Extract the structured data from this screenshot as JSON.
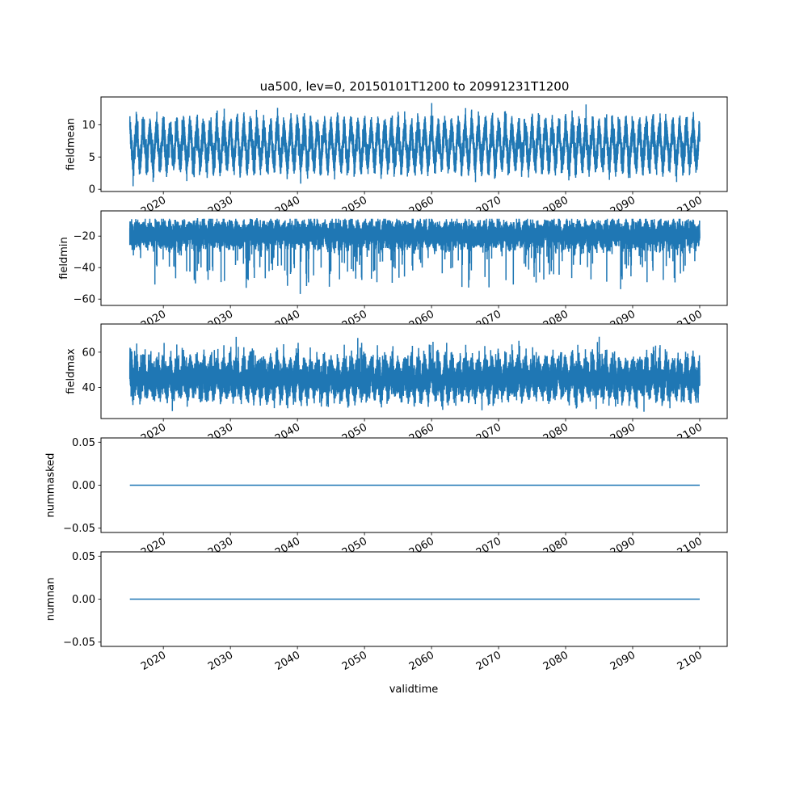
{
  "chart_data": {
    "type": "line",
    "title": "ua500, lev=0, 20150101T1200 to 20991231T1200",
    "xlabel": "validtime",
    "xlim": [
      2010.7,
      2104.1
    ],
    "xticks": [
      2020,
      2030,
      2040,
      2050,
      2060,
      2070,
      2080,
      2090,
      2100
    ],
    "xtick_labels": [
      "2020",
      "2030",
      "2040",
      "2050",
      "2060",
      "2070",
      "2080",
      "2090",
      "2100"
    ],
    "x_range": [
      2015.0,
      2100.0
    ],
    "color": "#1f77b4",
    "subplots": [
      {
        "ylabel": "fieldmean",
        "ylim": [
          -0.35,
          14.3
        ],
        "yticks": [
          0,
          5,
          10
        ],
        "ytick_labels": [
          "0",
          "5",
          "10"
        ],
        "series": {
          "kind": "seasonal-noisy",
          "mean": 6.8,
          "seasonal_amplitude": 2.6,
          "noise": 1.1,
          "min": 0.3,
          "max": 13.5
        }
      },
      {
        "ylabel": "fieldmin",
        "ylim": [
          -64,
          -4
        ],
        "yticks": [
          -60,
          -40,
          -20
        ],
        "ytick_labels": [
          "−60",
          "−40",
          "−20"
        ],
        "series": {
          "kind": "noisy-skewed-down",
          "mean": -19,
          "seasonal_amplitude": 2,
          "noise": 4,
          "min": -62,
          "max": -9
        }
      },
      {
        "ylabel": "fieldmax",
        "ylim": [
          22.3,
          76
        ],
        "yticks": [
          40,
          60
        ],
        "ytick_labels": [
          "40",
          "60"
        ],
        "series": {
          "kind": "noisy-skewed-up",
          "mean": 45,
          "seasonal_amplitude": 4,
          "noise": 5,
          "min": 25,
          "max": 74
        }
      },
      {
        "ylabel": "nummasked",
        "ylim": [
          -0.055,
          0.055
        ],
        "yticks": [
          -0.05,
          0.0,
          0.05
        ],
        "ytick_labels": [
          "−0.05",
          "0.00",
          "0.05"
        ],
        "series": {
          "kind": "constant",
          "value": 0
        }
      },
      {
        "ylabel": "numnan",
        "ylim": [
          -0.055,
          0.055
        ],
        "yticks": [
          -0.05,
          0.0,
          0.05
        ],
        "ytick_labels": [
          "−0.05",
          "0.00",
          "0.05"
        ],
        "series": {
          "kind": "constant",
          "value": 0
        }
      }
    ]
  }
}
